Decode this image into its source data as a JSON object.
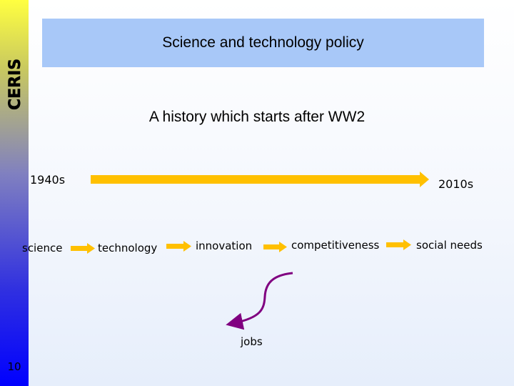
{
  "slide": {
    "number": "10",
    "title": "Science and technology policy",
    "subtitle": "A history which starts after WW2"
  },
  "sidebar": {
    "logo_icon": "ceris-logo-icon",
    "logo_text": "CERIS",
    "accent_top": "#ffff40",
    "accent_bottom": "#0000ff"
  },
  "timeline": {
    "start_label": "1940s",
    "end_label": "2010s",
    "arrow_color": "#ffc000"
  },
  "flow": {
    "steps": [
      "science",
      "technology",
      "innovation",
      "competitiveness",
      "social needs"
    ],
    "branch_label": "jobs",
    "branch_color": "#800080"
  }
}
